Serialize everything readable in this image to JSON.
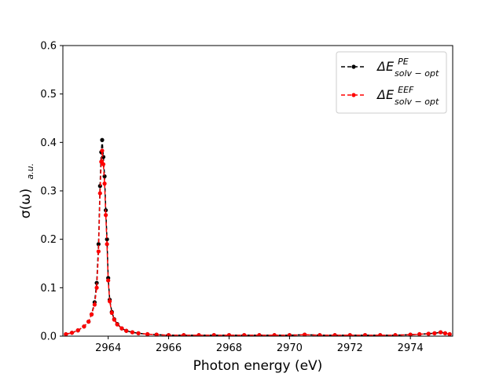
{
  "chart_data": {
    "type": "line",
    "title": "",
    "xlabel": "Photon energy (eV)",
    "ylabel": "σ(ω)",
    "ylabel_sub": "a.u.",
    "xlim": [
      2962.5,
      2975.4
    ],
    "ylim": [
      0,
      0.6
    ],
    "xticks": [
      2964,
      2966,
      2968,
      2970,
      2972,
      2974
    ],
    "yticks": [
      0.0,
      0.1,
      0.2,
      0.3,
      0.4,
      0.5,
      0.6
    ],
    "xtick_labels": [
      "2964",
      "2966",
      "2968",
      "2970",
      "2972",
      "2974"
    ],
    "ytick_labels": [
      "0.0",
      "0.1",
      "0.2",
      "0.3",
      "0.4",
      "0.5",
      "0.6"
    ],
    "grid": false,
    "legend_position": "top-right",
    "series": [
      {
        "name": "ΔE solv−opt PE",
        "legend_main": "ΔE",
        "legend_sup": "PE",
        "legend_sub": "solv − opt",
        "color": "#000000",
        "linestyle": "dashed",
        "marker": "circle",
        "x": [
          2962.6,
          2962.8,
          2963.0,
          2963.2,
          2963.35,
          2963.45,
          2963.55,
          2963.62,
          2963.68,
          2963.73,
          2963.77,
          2963.8,
          2963.84,
          2963.88,
          2963.92,
          2963.96,
          2964.0,
          2964.05,
          2964.12,
          2964.2,
          2964.3,
          2964.45,
          2964.6,
          2964.8,
          2965.0,
          2965.3,
          2965.6,
          2966.0,
          2966.5,
          2967.0,
          2967.5,
          2968.0,
          2968.5,
          2969.0,
          2969.5,
          2970.0,
          2970.5,
          2971.0,
          2971.5,
          2972.0,
          2972.5,
          2973.0,
          2973.5,
          2974.0,
          2974.3,
          2974.6,
          2974.8,
          2975.0,
          2975.15,
          2975.3
        ],
        "y": [
          0.004,
          0.007,
          0.012,
          0.02,
          0.03,
          0.045,
          0.07,
          0.11,
          0.19,
          0.31,
          0.38,
          0.405,
          0.37,
          0.33,
          0.26,
          0.2,
          0.12,
          0.075,
          0.05,
          0.035,
          0.025,
          0.016,
          0.011,
          0.008,
          0.006,
          0.004,
          0.003,
          0.002,
          0.002,
          0.002,
          0.002,
          0.002,
          0.002,
          0.002,
          0.002,
          0.002,
          0.003,
          0.002,
          0.002,
          0.002,
          0.002,
          0.002,
          0.002,
          0.003,
          0.004,
          0.005,
          0.006,
          0.008,
          0.006,
          0.004
        ]
      },
      {
        "name": "ΔE solv−opt EEF",
        "legend_main": "ΔE",
        "legend_sup": "EEF",
        "legend_sub": "solv − opt",
        "color": "#ff0000",
        "linestyle": "dashed",
        "marker": "circle",
        "x": [
          2962.6,
          2962.8,
          2963.0,
          2963.2,
          2963.35,
          2963.45,
          2963.55,
          2963.62,
          2963.68,
          2963.73,
          2963.77,
          2963.8,
          2963.84,
          2963.88,
          2963.92,
          2963.96,
          2964.0,
          2964.05,
          2964.12,
          2964.2,
          2964.3,
          2964.45,
          2964.6,
          2964.8,
          2965.0,
          2965.3,
          2965.6,
          2966.0,
          2966.5,
          2967.0,
          2967.5,
          2968.0,
          2968.5,
          2969.0,
          2969.5,
          2970.0,
          2970.5,
          2971.0,
          2971.5,
          2972.0,
          2972.5,
          2973.0,
          2973.5,
          2974.0,
          2974.3,
          2974.6,
          2974.8,
          2975.0,
          2975.15,
          2975.3
        ],
        "y": [
          0.004,
          0.007,
          0.012,
          0.02,
          0.03,
          0.045,
          0.065,
          0.1,
          0.175,
          0.295,
          0.36,
          0.383,
          0.355,
          0.315,
          0.25,
          0.19,
          0.115,
          0.072,
          0.048,
          0.034,
          0.024,
          0.016,
          0.011,
          0.008,
          0.006,
          0.004,
          0.003,
          0.002,
          0.002,
          0.002,
          0.002,
          0.002,
          0.002,
          0.002,
          0.002,
          0.002,
          0.003,
          0.002,
          0.002,
          0.002,
          0.002,
          0.002,
          0.002,
          0.003,
          0.004,
          0.005,
          0.006,
          0.008,
          0.006,
          0.004
        ]
      }
    ]
  }
}
